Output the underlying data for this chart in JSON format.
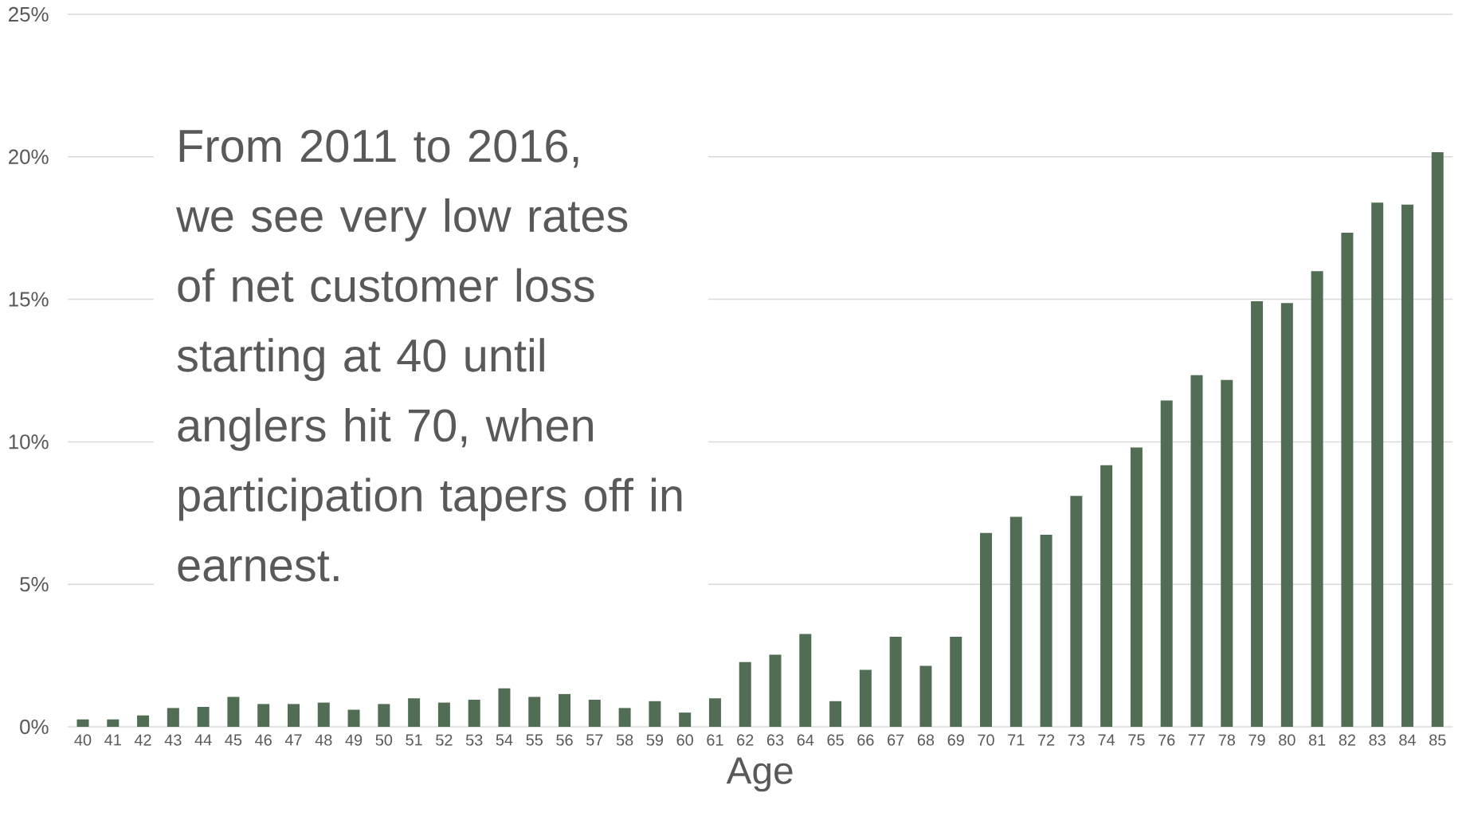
{
  "chart_data": {
    "type": "bar",
    "xlabel": "Age",
    "categories": [
      "40",
      "41",
      "42",
      "43",
      "44",
      "45",
      "46",
      "47",
      "48",
      "49",
      "50",
      "51",
      "52",
      "53",
      "54",
      "55",
      "56",
      "57",
      "58",
      "59",
      "60",
      "61",
      "62",
      "63",
      "64",
      "65",
      "66",
      "67",
      "68",
      "69",
      "70",
      "71",
      "72",
      "73",
      "74",
      "75",
      "76",
      "77",
      "78",
      "79",
      "80",
      "81",
      "82",
      "83",
      "84",
      "85"
    ],
    "values": [
      0.26,
      0.26,
      0.4,
      0.66,
      0.7,
      1.05,
      0.8,
      0.8,
      0.85,
      0.6,
      0.8,
      1.0,
      0.85,
      0.95,
      1.35,
      1.05,
      1.15,
      0.95,
      0.66,
      0.9,
      0.5,
      1.0,
      2.27,
      2.53,
      3.26,
      0.9,
      2.0,
      3.16,
      2.14,
      3.16,
      6.8,
      7.37,
      6.74,
      8.1,
      9.18,
      9.8,
      11.45,
      12.34,
      12.17,
      14.93,
      14.87,
      15.99,
      17.34,
      18.39,
      18.32,
      20.16
    ],
    "color": "#516e55",
    "ylim": [
      0,
      25
    ],
    "yticks": [
      {
        "value": 0,
        "label": "0%"
      },
      {
        "value": 5,
        "label": "5%"
      },
      {
        "value": 10,
        "label": "10%"
      },
      {
        "value": 15,
        "label": "15%"
      },
      {
        "value": 20,
        "label": "20%"
      },
      {
        "value": 25,
        "label": "25%"
      }
    ],
    "grid": "y",
    "annotations": [
      "From 2011 to 2016, we see very low rates of net customer loss starting at 40 until anglers hit 70, when participation tapers off in earnest."
    ]
  }
}
